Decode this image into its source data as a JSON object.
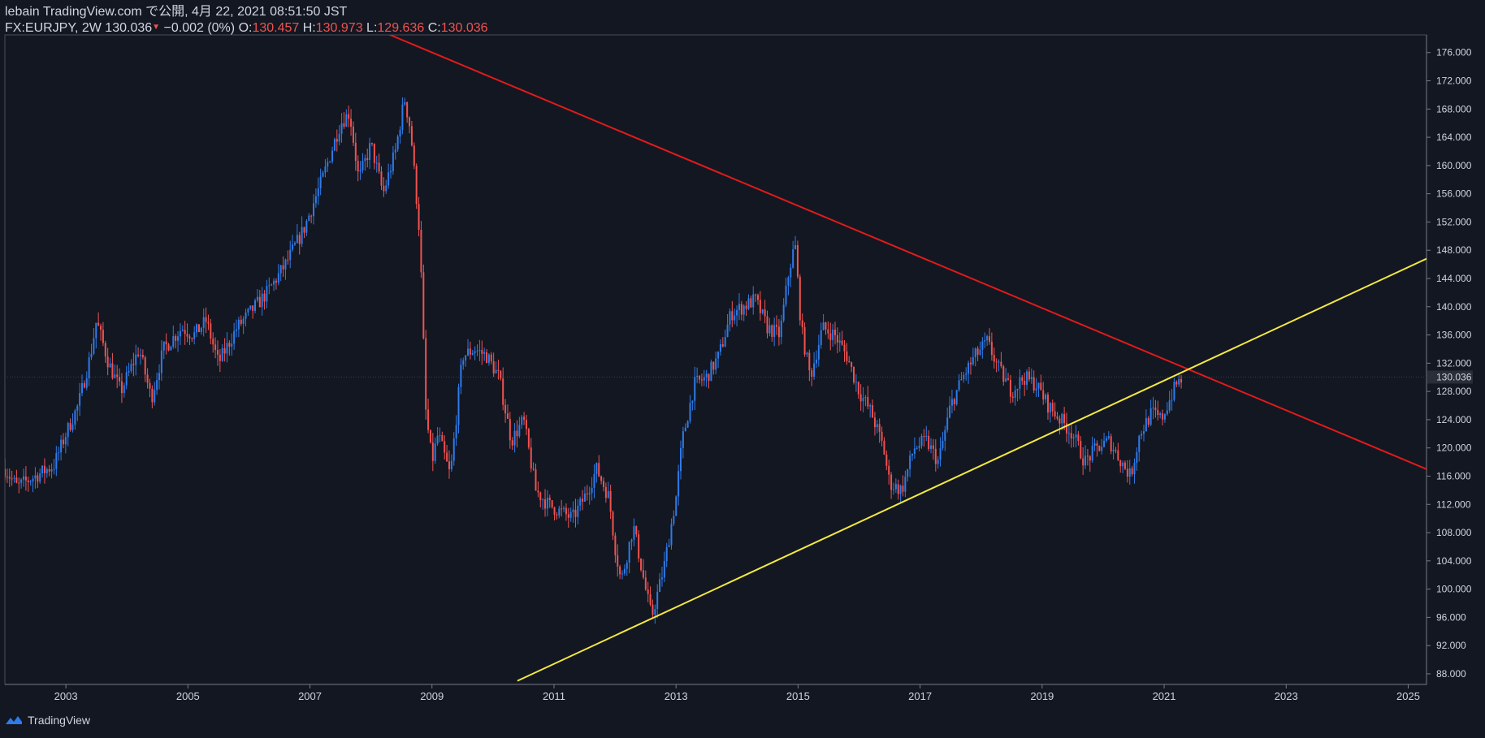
{
  "header": {
    "publisher": "lebain TradingView.com で公開, 4月 22, 2021 08:51:50 JST",
    "symbol_interval": "FX:EURJPY, 2W",
    "last": "130.036",
    "change_arrow": "▼",
    "change": "−0.002 (0%)",
    "o_label": "O:",
    "o_value": "130.457",
    "h_label": "H:",
    "h_value": "130.973",
    "l_label": "L:",
    "l_value": "129.636",
    "c_label": "C:",
    "c_value": "130.036"
  },
  "footer": {
    "brand": "TradingView",
    "logo_icon": "tradingview-logo-icon"
  },
  "colors": {
    "background": "#131722",
    "up": "#2e7be8",
    "down": "#ef5350",
    "resistance_line": "#e01b1b",
    "support_line": "#f4e842",
    "axis": "#787b86",
    "price_label_bg": "#2a2e39"
  },
  "chart_data": {
    "type": "candlestick",
    "symbol": "FX:EURJPY",
    "interval": "2W",
    "x_axis": {
      "range": [
        2002.0,
        2025.3
      ],
      "ticks": [
        "2003",
        "2005",
        "2007",
        "2009",
        "2011",
        "2013",
        "2015",
        "2017",
        "2019",
        "2021",
        "2023",
        "2025"
      ]
    },
    "y_axis": {
      "range": [
        86.5,
        178.5
      ],
      "scale": "linear",
      "side": "right",
      "ticks": [
        "88.000",
        "92.000",
        "96.000",
        "100.000",
        "104.000",
        "108.000",
        "112.000",
        "116.000",
        "120.000",
        "124.000",
        "128.000",
        "132.000",
        "136.000",
        "140.000",
        "144.000",
        "148.000",
        "152.000",
        "156.000",
        "160.000",
        "164.000",
        "168.000",
        "172.000",
        "176.000"
      ]
    },
    "last_price": {
      "value": 130.036,
      "label": "130.036"
    },
    "price_path": [
      [
        2002.0,
        117.0
      ],
      [
        2002.2,
        114.5
      ],
      [
        2002.5,
        116.0
      ],
      [
        2002.8,
        117.5
      ],
      [
        2003.0,
        122.0
      ],
      [
        2003.2,
        126.0
      ],
      [
        2003.4,
        133.0
      ],
      [
        2003.5,
        138.0
      ],
      [
        2003.7,
        132.0
      ],
      [
        2003.9,
        128.0
      ],
      [
        2004.2,
        134.0
      ],
      [
        2004.4,
        127.0
      ],
      [
        2004.6,
        134.0
      ],
      [
        2004.9,
        137.0
      ],
      [
        2005.1,
        136.0
      ],
      [
        2005.3,
        138.0
      ],
      [
        2005.5,
        132.0
      ],
      [
        2005.8,
        137.0
      ],
      [
        2006.0,
        139.0
      ],
      [
        2006.3,
        142.0
      ],
      [
        2006.6,
        146.0
      ],
      [
        2006.9,
        151.0
      ],
      [
        2007.2,
        158.0
      ],
      [
        2007.5,
        166.0
      ],
      [
        2007.65,
        167.5
      ],
      [
        2007.8,
        158.0
      ],
      [
        2008.0,
        163.0
      ],
      [
        2008.2,
        156.0
      ],
      [
        2008.4,
        162.0
      ],
      [
        2008.55,
        169.5
      ],
      [
        2008.65,
        165.0
      ],
      [
        2008.8,
        150.0
      ],
      [
        2008.9,
        125.0
      ],
      [
        2009.0,
        118.0
      ],
      [
        2009.1,
        122.0
      ],
      [
        2009.3,
        116.0
      ],
      [
        2009.5,
        133.0
      ],
      [
        2009.7,
        134.0
      ],
      [
        2009.9,
        133.0
      ],
      [
        2010.1,
        130.0
      ],
      [
        2010.3,
        121.0
      ],
      [
        2010.5,
        124.0
      ],
      [
        2010.7,
        114.0
      ],
      [
        2010.9,
        112.0
      ],
      [
        2011.1,
        111.0
      ],
      [
        2011.3,
        110.0
      ],
      [
        2011.5,
        113.0
      ],
      [
        2011.7,
        117.0
      ],
      [
        2011.9,
        113.0
      ],
      [
        2012.0,
        106.0
      ],
      [
        2012.1,
        101.0
      ],
      [
        2012.3,
        109.0
      ],
      [
        2012.5,
        100.0
      ],
      [
        2012.6,
        96.0
      ],
      [
        2012.8,
        103.0
      ],
      [
        2013.0,
        113.0
      ],
      [
        2013.1,
        121.0
      ],
      [
        2013.3,
        129.0
      ],
      [
        2013.5,
        130.0
      ],
      [
        2013.7,
        133.0
      ],
      [
        2013.9,
        139.0
      ],
      [
        2014.1,
        140.0
      ],
      [
        2014.3,
        141.0
      ],
      [
        2014.5,
        137.0
      ],
      [
        2014.7,
        136.0
      ],
      [
        2014.85,
        145.0
      ],
      [
        2014.95,
        149.0
      ],
      [
        2015.05,
        137.0
      ],
      [
        2015.2,
        130.0
      ],
      [
        2015.4,
        137.0
      ],
      [
        2015.6,
        136.0
      ],
      [
        2015.8,
        133.0
      ],
      [
        2016.0,
        128.0
      ],
      [
        2016.2,
        125.0
      ],
      [
        2016.4,
        120.0
      ],
      [
        2016.5,
        115.0
      ],
      [
        2016.7,
        114.0
      ],
      [
        2016.9,
        120.0
      ],
      [
        2017.1,
        121.0
      ],
      [
        2017.3,
        118.0
      ],
      [
        2017.5,
        126.0
      ],
      [
        2017.7,
        130.0
      ],
      [
        2017.9,
        133.0
      ],
      [
        2018.1,
        135.0
      ],
      [
        2018.3,
        131.0
      ],
      [
        2018.5,
        128.0
      ],
      [
        2018.7,
        130.0
      ],
      [
        2018.9,
        129.0
      ],
      [
        2019.1,
        126.0
      ],
      [
        2019.3,
        124.0
      ],
      [
        2019.5,
        122.0
      ],
      [
        2019.7,
        118.0
      ],
      [
        2019.9,
        120.0
      ],
      [
        2020.1,
        121.0
      ],
      [
        2020.3,
        118.0
      ],
      [
        2020.45,
        116.0
      ],
      [
        2020.6,
        122.0
      ],
      [
        2020.8,
        125.0
      ],
      [
        2020.95,
        124.0
      ],
      [
        2021.1,
        127.0
      ],
      [
        2021.2,
        129.0
      ],
      [
        2021.3,
        130.0
      ]
    ],
    "trendlines": [
      {
        "label": "resistance",
        "color": "#e01b1b",
        "points": [
          [
            2007.9,
            180.0
          ],
          [
            2025.3,
            117.0
          ]
        ]
      },
      {
        "label": "support",
        "color": "#f4e842",
        "points": [
          [
            2010.4,
            87.0
          ],
          [
            2025.3,
            146.8
          ]
        ]
      }
    ]
  }
}
